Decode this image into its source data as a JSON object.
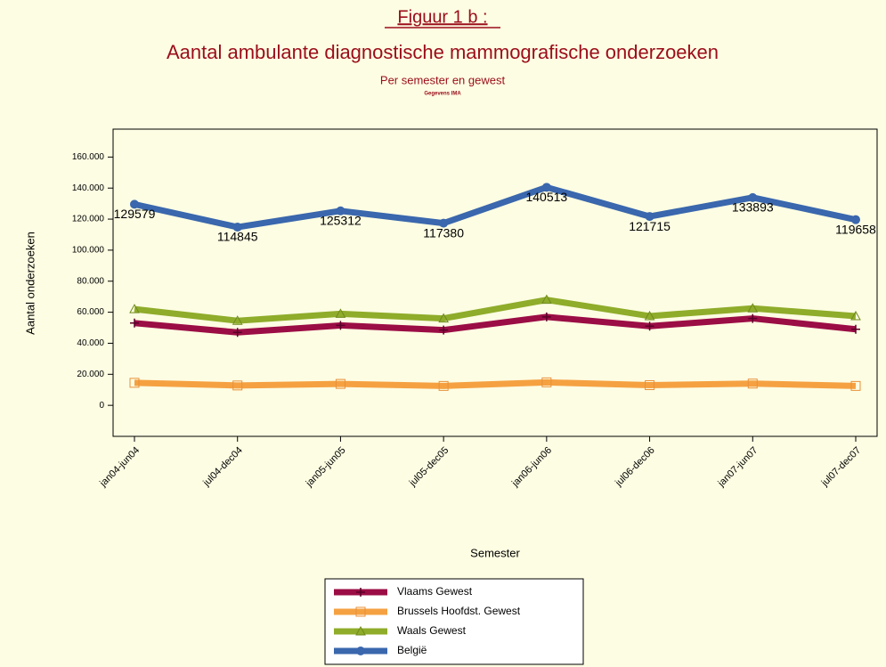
{
  "chart_data": {
    "type": "line",
    "title": "Figuur 1 b :",
    "subtitle": "Aantal ambulante diagnostische mammografische onderzoeken",
    "subtitle2": "Per semester en gewest",
    "note": "Gegevens IMA",
    "x_label": "Semester",
    "y_label": "Aantal onderzoeken",
    "categories": [
      "jan04-jun04",
      "jul04-dec04",
      "jan05-jun05",
      "jul05-dec05",
      "jan06-jun06",
      "jul06-dec06",
      "jan07-jun07",
      "jul07-dec07"
    ],
    "series": [
      {
        "name": "Vlaams Gewest",
        "color": "#9b0d45",
        "marker": "plus",
        "values": [
          53000,
          47000,
          51500,
          48500,
          57000,
          51000,
          56000,
          49000
        ]
      },
      {
        "name": "Brussels Hoofdst. Gewest",
        "color": "#f5a142",
        "marker": "square",
        "values": [
          14500,
          12800,
          13800,
          12500,
          14800,
          13000,
          14000,
          12500
        ]
      },
      {
        "name": "Waals Gewest",
        "color": "#8fac2a",
        "marker": "triangle",
        "values": [
          62000,
          54500,
          59000,
          56000,
          68000,
          57500,
          62500,
          57500
        ]
      },
      {
        "name": "België",
        "color": "#3a67ad",
        "marker": "circle",
        "labels": true,
        "values": [
          129579,
          114845,
          125312,
          117380,
          140513,
          121715,
          133893,
          119658
        ]
      }
    ],
    "ylim": [
      -20000,
      178000
    ],
    "yticks": [
      0,
      {
        "value": 20000,
        "label": "20.000"
      },
      {
        "value": 40000,
        "label": "40.000"
      },
      {
        "value": 60000,
        "label": "60.000"
      },
      {
        "value": 80000,
        "label": "80.000"
      },
      {
        "value": 100000,
        "label": "100.000"
      },
      {
        "value": 120000,
        "label": "120.000"
      },
      {
        "value": 140000,
        "label": "140.000"
      },
      {
        "value": 160000,
        "label": "160.000"
      }
    ],
    "grid": false
  }
}
